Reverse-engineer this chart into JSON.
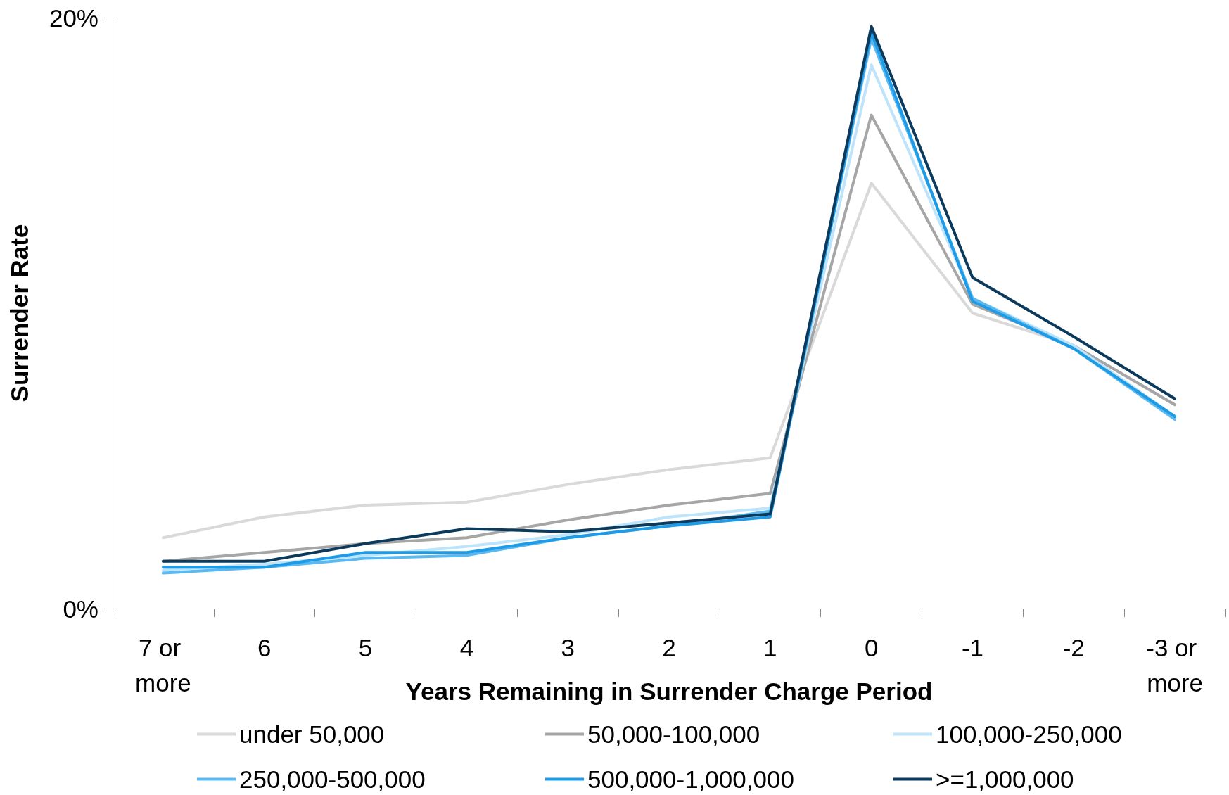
{
  "chart_data": {
    "type": "line",
    "xlabel": "Years Remaining in Surrender Charge Period",
    "ylabel": "Surrender Rate",
    "categories": [
      "7 or more",
      "6",
      "5",
      "4",
      "3",
      "2",
      "1",
      "0",
      "-1",
      "-2",
      "-3 or more"
    ],
    "ylim": [
      0,
      20
    ],
    "yticks": [
      {
        "value": 0,
        "label": "0%"
      },
      {
        "value": 20,
        "label": "20%"
      }
    ],
    "grid": false,
    "legend": "bottom",
    "marker": "none",
    "line_style": "solid",
    "series": [
      {
        "name": "under 50,000",
        "color": "#d9d9d9",
        "values": [
          2.4,
          3.1,
          3.5,
          3.6,
          4.2,
          4.7,
          5.1,
          14.4,
          10.0,
          8.9,
          6.9
        ]
      },
      {
        "name": "50,000-100,000",
        "color": "#a6a6a6",
        "values": [
          1.6,
          1.9,
          2.2,
          2.4,
          3.0,
          3.5,
          3.9,
          16.7,
          10.3,
          8.9,
          6.9
        ]
      },
      {
        "name": "100,000-250,000",
        "color": "#bde4fa",
        "values": [
          1.3,
          1.5,
          1.8,
          2.1,
          2.5,
          3.1,
          3.4,
          18.4,
          10.5,
          8.9,
          6.5
        ]
      },
      {
        "name": "250,000-500,000",
        "color": "#5ab9f0",
        "values": [
          1.2,
          1.4,
          1.7,
          1.8,
          2.4,
          2.8,
          3.3,
          19.3,
          10.5,
          8.8,
          6.4
        ]
      },
      {
        "name": "500,000-1,000,000",
        "color": "#1e9be6",
        "values": [
          1.4,
          1.4,
          1.9,
          1.9,
          2.4,
          2.8,
          3.1,
          19.5,
          10.4,
          8.8,
          6.5
        ]
      },
      {
        "name": ">=1,000,000",
        "color": "#0b3a5c",
        "values": [
          1.6,
          1.6,
          2.2,
          2.7,
          2.6,
          2.9,
          3.2,
          19.7,
          11.2,
          9.2,
          7.1
        ]
      }
    ]
  }
}
